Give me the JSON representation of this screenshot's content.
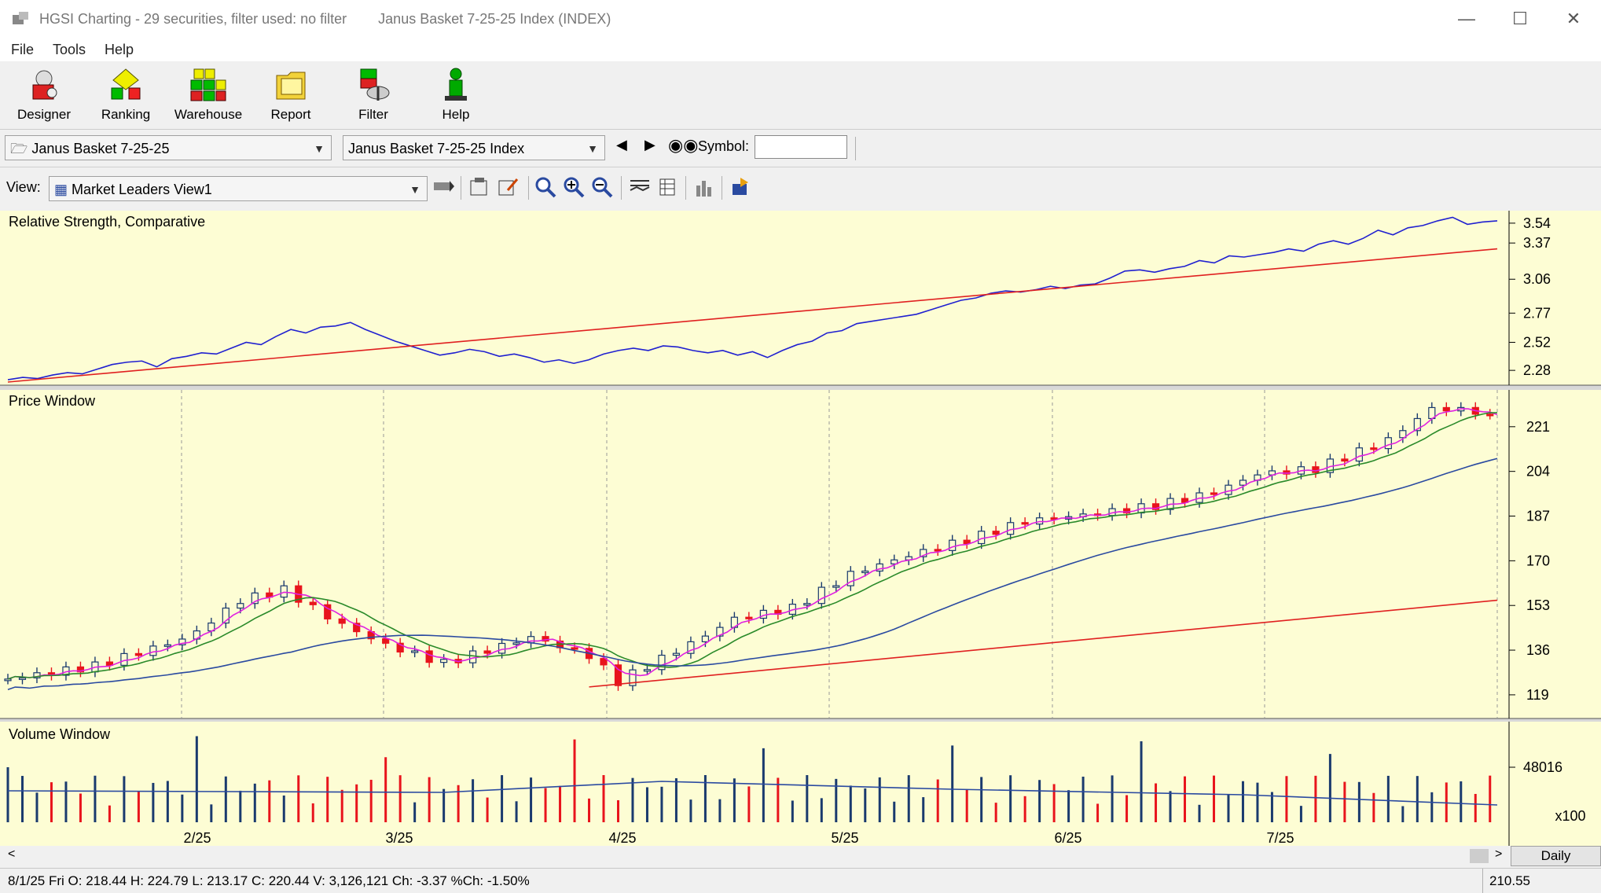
{
  "window": {
    "title": "HGSI Charting - 29 securities, filter used: no filter",
    "subtitle": "Janus Basket 7-25-25 Index (INDEX)"
  },
  "menu": [
    "File",
    "Tools",
    "Help"
  ],
  "toolbar": {
    "buttons": [
      {
        "label": "Designer",
        "icon": "designer-icon"
      },
      {
        "label": "Ranking",
        "icon": "ranking-icon"
      },
      {
        "label": "Warehouse",
        "icon": "warehouse-icon"
      },
      {
        "label": "Report",
        "icon": "report-icon"
      },
      {
        "label": "Filter",
        "icon": "filter-icon"
      },
      {
        "label": "Help",
        "icon": "help-icon"
      }
    ]
  },
  "selectors": {
    "basket": "Janus Basket 7-25-25",
    "security": "Janus Basket 7-25-25 Index",
    "symbol_label": "Symbol:",
    "symbol_value": ""
  },
  "view": {
    "label": "View:",
    "value": "Market Leaders View1"
  },
  "panes": {
    "rs_title": "Relative Strength, Comparative",
    "price_title": "Price Window",
    "volume_title": "Volume Window"
  },
  "chart_data": {
    "type": "line",
    "rs": {
      "yticks": [
        3.54,
        3.37,
        3.06,
        2.77,
        2.52,
        2.28
      ],
      "ylim": [
        2.18,
        3.62
      ],
      "line": [
        2.2,
        2.22,
        2.21,
        2.24,
        2.26,
        2.25,
        2.29,
        2.33,
        2.35,
        2.36,
        2.31,
        2.38,
        2.4,
        2.43,
        2.42,
        2.47,
        2.52,
        2.5,
        2.57,
        2.63,
        2.6,
        2.65,
        2.66,
        2.69,
        2.63,
        2.58,
        2.53,
        2.49,
        2.45,
        2.41,
        2.43,
        2.46,
        2.44,
        2.4,
        2.42,
        2.39,
        2.35,
        2.37,
        2.34,
        2.37,
        2.42,
        2.45,
        2.47,
        2.45,
        2.49,
        2.48,
        2.45,
        2.43,
        2.45,
        2.41,
        2.44,
        2.39,
        2.45,
        2.5,
        2.53,
        2.6,
        2.62,
        2.68,
        2.7,
        2.72,
        2.74,
        2.76,
        2.8,
        2.84,
        2.88,
        2.9,
        2.94,
        2.96,
        2.95,
        2.97,
        3.0,
        2.98,
        3.01,
        3.02,
        3.07,
        3.13,
        3.14,
        3.12,
        3.15,
        3.17,
        3.22,
        3.2,
        3.26,
        3.25,
        3.27,
        3.29,
        3.32,
        3.3,
        3.36,
        3.39,
        3.36,
        3.41,
        3.48,
        3.44,
        3.5,
        3.52,
        3.56,
        3.59,
        3.53,
        3.55,
        3.56
      ],
      "ma": [
        2.18,
        3.32
      ]
    },
    "price": {
      "yticks": [
        221,
        204,
        187,
        170,
        153,
        136,
        119
      ],
      "ylim": [
        110,
        235
      ],
      "last_close": 220.44
    },
    "volume": {
      "ytick": "48016",
      "multiplier": "x100"
    },
    "x_labels": [
      "2/25",
      "3/25",
      "4/25",
      "5/25",
      "6/25",
      "7/25"
    ],
    "period": "Daily"
  },
  "status": {
    "ohlc": "8/1/25 Fri O: 218.44 H: 224.79 L: 213.17 C: 220.44 V: 3,126,121 Ch: -3.37 %Ch: -1.50%",
    "cursor_value": "210.55"
  },
  "colors": {
    "chart_bg": "#fdfdd4",
    "up": "#1a3a6e",
    "down": "#e8141c",
    "rs_line": "#2020d0",
    "ma_red": "#e02020",
    "ma_magenta": "#e020e0",
    "ma_green": "#2a8a2a",
    "ma_blue": "#2a4aa0"
  }
}
